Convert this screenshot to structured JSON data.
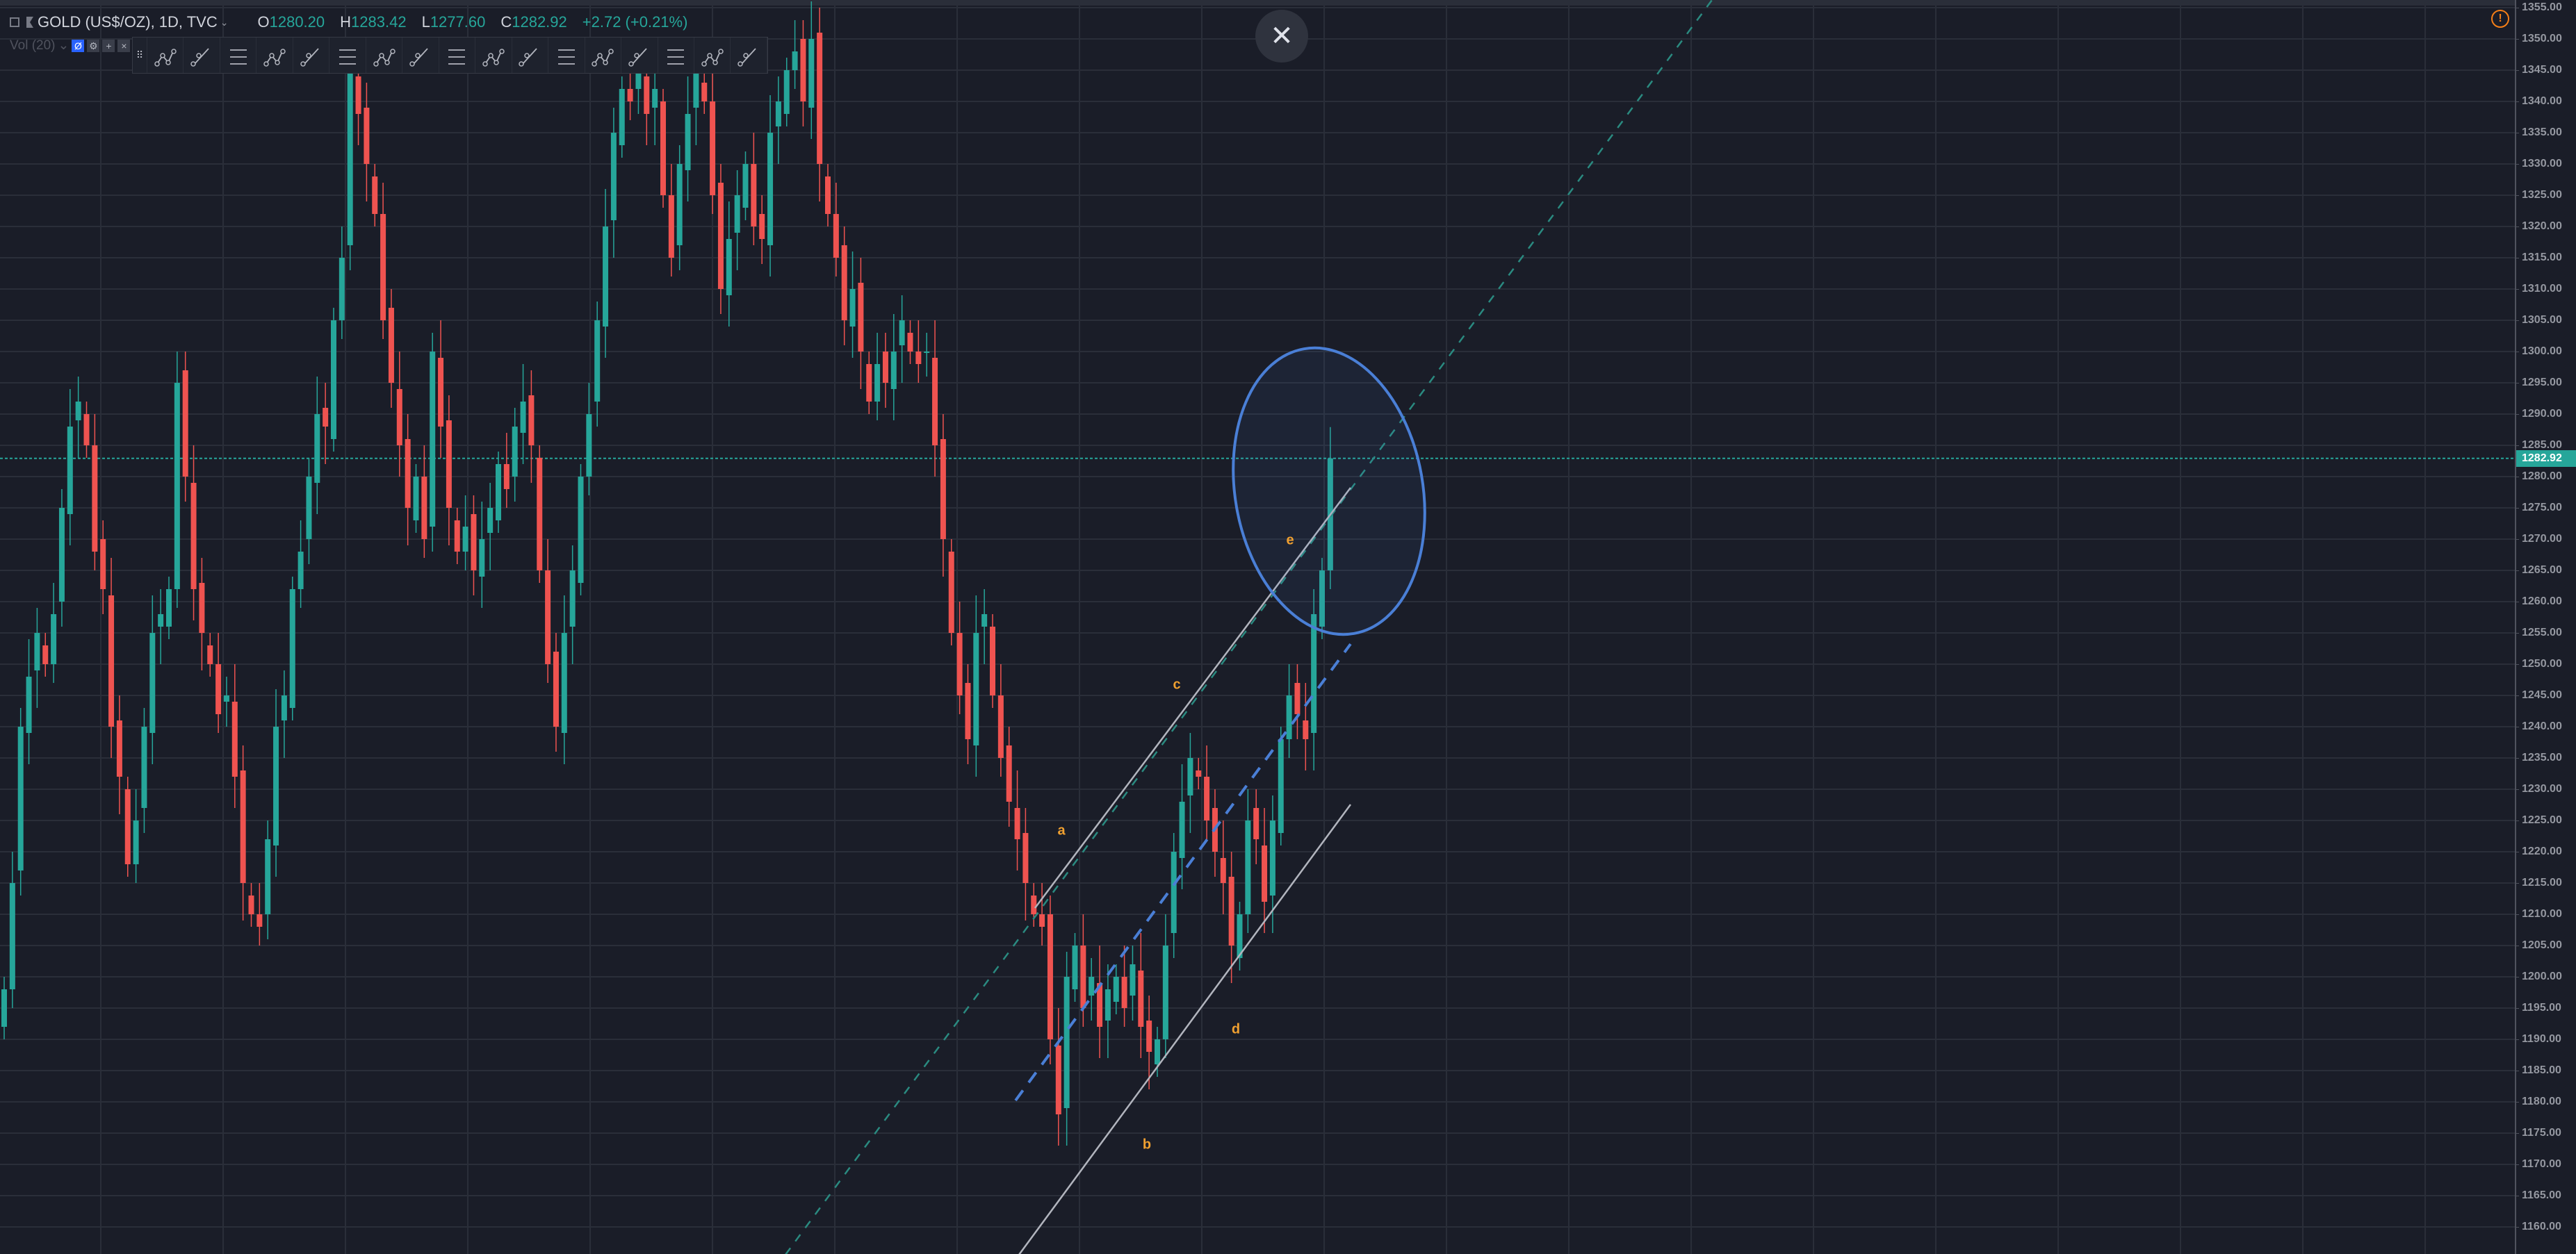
{
  "header": {
    "symbol": "GOLD (US$/OZ), 1D, TVC",
    "open_label": "O",
    "open": "1280.20",
    "high_label": "H",
    "high": "1283.42",
    "low_label": "L",
    "low": "1277.60",
    "close_label": "C",
    "close": "1282.92",
    "change": "+2.72 (+0.21%)"
  },
  "volume": {
    "label": "Vol (20)",
    "chevron": "⌄",
    "buttons": [
      "Ø",
      "⚙",
      "+",
      "×"
    ]
  },
  "toolbar": {
    "grip": "⠿",
    "tools": [
      "elliott-impulse-wave",
      "elliott-correction-wave",
      "horizontal-ray",
      "elliott-wave-1-5",
      "fib-levels",
      "brush",
      "trend-line",
      "price-range",
      "parallel-channel",
      "elliott-double-combo",
      "ray",
      "extended-line",
      "pitchfork",
      "triangle-pattern",
      "curve",
      "arrow",
      "info-line"
    ]
  },
  "close_button": "✕",
  "warning_icon": "!",
  "price_axis": {
    "ticks": [
      "1355.00",
      "1350.00",
      "1345.00",
      "1340.00",
      "1335.00",
      "1330.00",
      "1325.00",
      "1320.00",
      "1315.00",
      "1310.00",
      "1305.00",
      "1300.00",
      "1295.00",
      "1290.00",
      "1285.00",
      "1280.00",
      "1275.00",
      "1270.00",
      "1265.00",
      "1260.00",
      "1255.00",
      "1250.00",
      "1245.00",
      "1240.00",
      "1235.00",
      "1230.00",
      "1225.00",
      "1220.00",
      "1215.00",
      "1210.00",
      "1205.00",
      "1200.00",
      "1195.00",
      "1190.00",
      "1185.00",
      "1180.00",
      "1175.00",
      "1170.00",
      "1165.00",
      "1160.00"
    ],
    "last_price": "1282.92"
  },
  "wave_labels": [
    "a",
    "b",
    "c",
    "d",
    "e"
  ],
  "colors": {
    "up": "#26a69a",
    "down": "#ef5350",
    "background": "#1a1d28",
    "grid": "#2a2e39",
    "ellipse": "#4a7fd6",
    "wave_label": "#f0a030"
  },
  "chart_data": {
    "type": "candlestick",
    "ylim": [
      1157,
      1356
    ],
    "closes": [
      1198,
      1215,
      1240,
      1248,
      1255,
      1250,
      1258,
      1275,
      1288,
      1292,
      1285,
      1268,
      1262,
      1240,
      1232,
      1218,
      1225,
      1240,
      1255,
      1258,
      1262,
      1295,
      1280,
      1262,
      1255,
      1250,
      1242,
      1245,
      1232,
      1215,
      1210,
      1208,
      1222,
      1240,
      1245,
      1262,
      1268,
      1280,
      1290,
      1288,
      1305,
      1315,
      1345,
      1338,
      1330,
      1322,
      1305,
      1295,
      1285,
      1275,
      1280,
      1270,
      1300,
      1288,
      1275,
      1268,
      1272,
      1265,
      1270,
      1275,
      1282,
      1278,
      1288,
      1292,
      1285,
      1265,
      1250,
      1240,
      1255,
      1265,
      1280,
      1290,
      1305,
      1320,
      1335,
      1342,
      1340,
      1345,
      1338,
      1342,
      1325,
      1315,
      1330,
      1338,
      1345,
      1340,
      1325,
      1310,
      1318,
      1325,
      1330,
      1320,
      1318,
      1335,
      1340,
      1345,
      1348,
      1340,
      1350,
      1330,
      1322,
      1315,
      1305,
      1310,
      1300,
      1292,
      1298,
      1295,
      1300,
      1305,
      1300,
      1298,
      1300,
      1285,
      1270,
      1255,
      1245,
      1238,
      1255,
      1258,
      1245,
      1235,
      1228,
      1222,
      1215,
      1210,
      1208,
      1190,
      1178,
      1200,
      1205,
      1195,
      1200,
      1192,
      1198,
      1200,
      1195,
      1202,
      1192,
      1188,
      1190,
      1205,
      1220,
      1228,
      1235,
      1232,
      1225,
      1220,
      1215,
      1205,
      1210,
      1225,
      1222,
      1212,
      1225,
      1238,
      1245,
      1242,
      1238,
      1258,
      1265,
      1282.92
    ]
  }
}
